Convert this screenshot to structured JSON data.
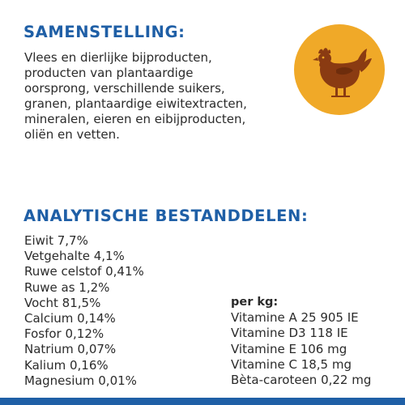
{
  "composition": {
    "heading": "SAMENSTELLING:",
    "lines": [
      "Vlees en dierlijke bijproducten,",
      "producten van plantaardige",
      "oorsprong, verschillende suikers,",
      "granen, plantaardige eiwitextracten,",
      "mineralen, eieren en eibijproducten,",
      "oliën en vetten."
    ],
    "badge_icon": "chicken-icon",
    "badge_color": "#f0a928"
  },
  "analysis": {
    "heading": "ANALYTISCHE BESTANDDELEN:",
    "nutrients": [
      "Eiwit 7,7%",
      "Vetgehalte 4,1%",
      "Ruwe celstof 0,41%",
      "Ruwe as 1,2%",
      "Vocht 81,5%",
      "Calcium 0,14%",
      "Fosfor 0,12%",
      "Natrium 0,07%",
      "Kalium 0,16%",
      "Magnesium 0,01%"
    ],
    "vitamins_heading": "per kg:",
    "vitamins": [
      "Vitamine A 25 905 IE",
      "Vitamine D3 118 IE",
      "Vitamine E 106 mg",
      "Vitamine C 18,5 mg",
      "Bèta-caroteen 0,22 mg"
    ]
  },
  "colors": {
    "heading_blue": "#1f5fa6",
    "text": "#2b2b2b",
    "bottom_bar": "#1f5fa6"
  }
}
